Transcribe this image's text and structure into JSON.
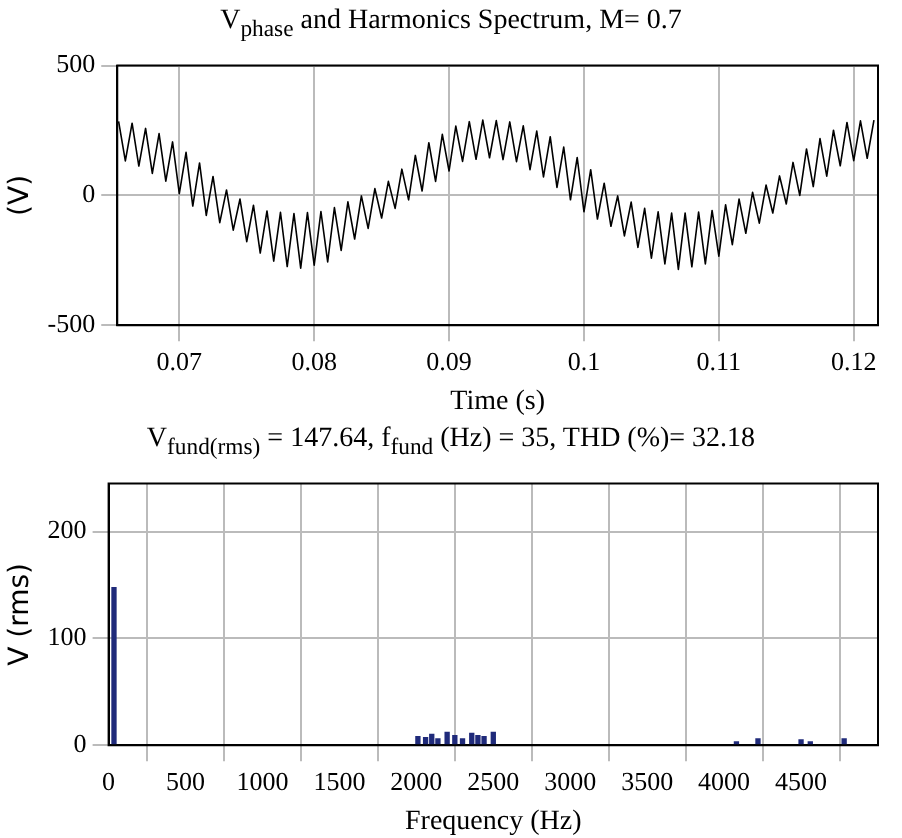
{
  "chart_data": [
    {
      "type": "line",
      "title": "V$_{phase}$ and Harmonics Spectrum, M= 0.7",
      "xlabel": "Time (s)",
      "ylabel": "(V)",
      "x": [
        0.0655,
        0.066,
        0.0665,
        0.067,
        0.0675,
        0.068,
        0.0685,
        0.069,
        0.0695,
        0.07,
        0.0705,
        0.071,
        0.0715,
        0.072,
        0.0725,
        0.073,
        0.0735,
        0.074,
        0.0745,
        0.075,
        0.0755,
        0.076,
        0.0765,
        0.077,
        0.0775,
        0.078,
        0.0785,
        0.079,
        0.0795,
        0.08,
        0.0805,
        0.081,
        0.0815,
        0.082,
        0.0825,
        0.083,
        0.0835,
        0.084,
        0.0845,
        0.085,
        0.0855,
        0.086,
        0.0865,
        0.087,
        0.0875,
        0.088,
        0.0885,
        0.089,
        0.0895,
        0.09,
        0.0905,
        0.091,
        0.0915,
        0.092,
        0.0925,
        0.093,
        0.0935,
        0.094,
        0.0945,
        0.095,
        0.0955,
        0.096,
        0.0965,
        0.097,
        0.0975,
        0.098,
        0.0985,
        0.099,
        0.0995,
        0.1,
        0.1005,
        0.101,
        0.1015,
        0.102,
        0.1025,
        0.103,
        0.1035,
        0.104,
        0.1045,
        0.105,
        0.1055,
        0.106,
        0.1065,
        0.107,
        0.1075,
        0.108,
        0.1085,
        0.109,
        0.1095,
        0.11,
        0.1105,
        0.111,
        0.1115,
        0.112,
        0.1125,
        0.113,
        0.1135,
        0.114,
        0.1145,
        0.115,
        0.1155,
        0.116,
        0.1165,
        0.117,
        0.1175,
        0.118,
        0.1185,
        0.119,
        0.1195,
        0.12,
        0.1205,
        0.121,
        0.1215
      ],
      "series": [
        {
          "color": "#000000",
          "values": [
            285,
            133,
            278,
            113,
            258,
            85,
            238,
            55,
            206,
            7,
            166,
            -41,
            125,
            -77,
            73,
            -105,
            21,
            -134,
            -14,
            -178,
            -38,
            -222,
            -60,
            -253,
            -65,
            -274,
            -70,
            -280,
            -66,
            -269,
            -62,
            -256,
            -47,
            -212,
            -25,
            -168,
            -2,
            -127,
            26,
            -87,
            54,
            -50,
            101,
            -17,
            154,
            17,
            203,
            54,
            235,
            94,
            267,
            131,
            284,
            139,
            290,
            145,
            288,
            138,
            283,
            130,
            268,
            99,
            248,
            71,
            226,
            31,
            186,
            -17,
            146,
            -63,
            99,
            -91,
            47,
            -119,
            -2,
            -156,
            -26,
            -200,
            -50,
            -242,
            -63,
            -264,
            -68,
            -285,
            -68,
            -275,
            -64,
            -264,
            -58,
            -234,
            -36,
            -190,
            -14,
            -146,
            12,
            -107,
            40,
            -68,
            75,
            -33,
            127,
            0,
            179,
            34,
            219,
            74,
            251,
            114,
            281,
            134,
            287,
            143,
            290
          ]
        }
      ],
      "xlim": [
        0.0654,
        0.1218
      ],
      "xticks": [
        0.07,
        0.08,
        0.09,
        0.1,
        0.11,
        0.12
      ],
      "ylim": [
        -500,
        500
      ],
      "yticks": [
        -500,
        0,
        500
      ],
      "grid": true,
      "legend": false,
      "marker": "none",
      "line_style": "solid"
    },
    {
      "type": "bar",
      "title": "V$_{fund(rms)}$ = 147.64, f$_{fund}$ (Hz) = 35, THD (%)= 32.18",
      "xlabel": "Frequency (Hz)",
      "ylabel": "V (rms)",
      "x": [
        35,
        2010,
        2060,
        2100,
        2140,
        2200,
        2250,
        2300,
        2360,
        2400,
        2440,
        2500,
        4080,
        4220,
        4500,
        4560,
        4780
      ],
      "series": [
        {
          "color": "#1f2a7a",
          "values": [
            147.64,
            8,
            7,
            10,
            6,
            12,
            9,
            6,
            11,
            9,
            8,
            12,
            3,
            6,
            5,
            3,
            6
          ]
        }
      ],
      "xlim": [
        0,
        5000
      ],
      "xticks": [
        0,
        500,
        1000,
        1500,
        2000,
        2500,
        3000,
        3500,
        4000,
        4500
      ],
      "ylim": [
        0,
        245
      ],
      "yticks": [
        0,
        100,
        200
      ],
      "grid": true,
      "legend": false
    }
  ]
}
